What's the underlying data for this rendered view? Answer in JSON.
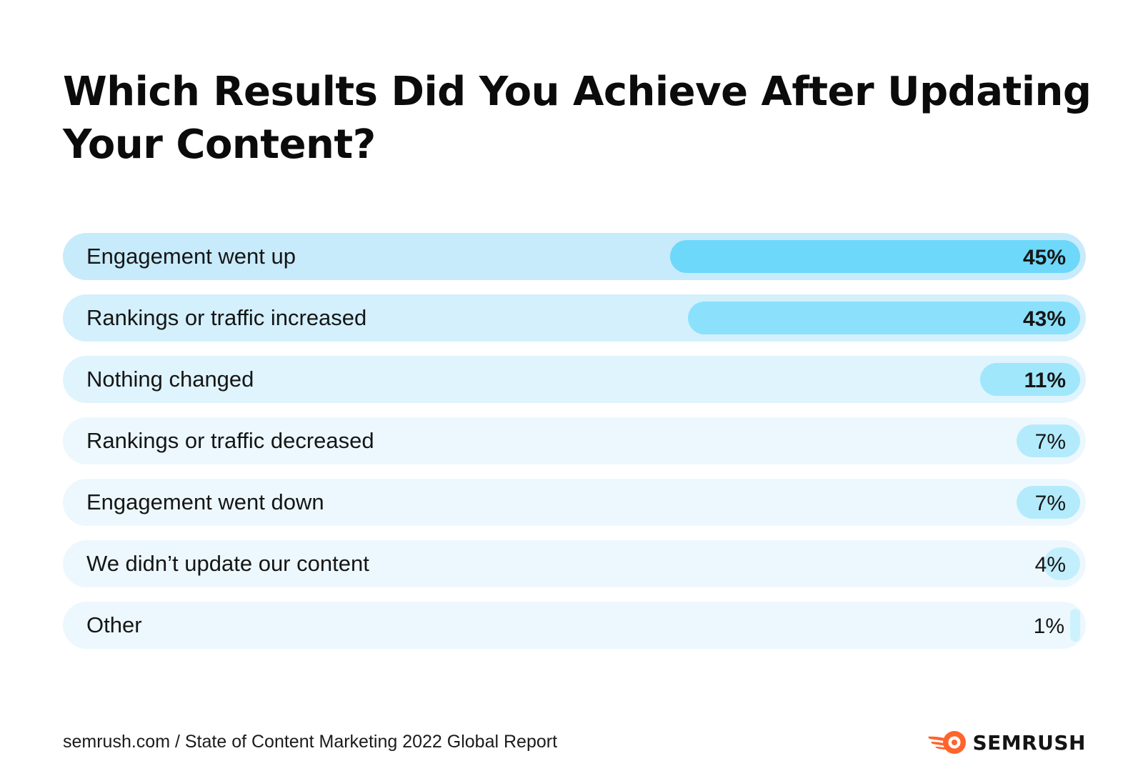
{
  "title": "Which Results Did You Achieve After Updating Your Content?",
  "chart_data": {
    "type": "bar",
    "orientation": "horizontal",
    "title": "Which Results Did You Achieve After Updating Your Content?",
    "categories": [
      "Engagement went up",
      "Rankings or traffic increased",
      "Nothing changed",
      "Rankings or traffic decreased",
      "Engagement went down",
      "We didn’t update our content",
      "Other"
    ],
    "values": [
      45,
      43,
      11,
      7,
      7,
      4,
      1
    ],
    "value_labels": [
      "45%",
      "43%",
      "11%",
      "7%",
      "7%",
      "4%",
      "1%"
    ],
    "unit": "%",
    "xlim": [
      0,
      100
    ],
    "grid": false,
    "legend": "none",
    "colors": {
      "row_backgrounds": [
        "#c7ebfb",
        "#d3f0fc",
        "#dff4fd",
        "#edf8fe",
        "#edf8fe",
        "#edf8fe",
        "#edf8fe"
      ],
      "bars": [
        "#6dd8fa",
        "#8be1fb",
        "#a1e7fc",
        "#b3ebfc",
        "#b3ebfc",
        "#c3effd",
        "#ccf2fd"
      ]
    }
  },
  "footer": {
    "source": "semrush.com / State of Content Marketing 2022 Global Report",
    "brand_name": "SEMRUSH",
    "logo_icon": "semrush-fireball-logo",
    "brand_color": "#ff642d"
  }
}
